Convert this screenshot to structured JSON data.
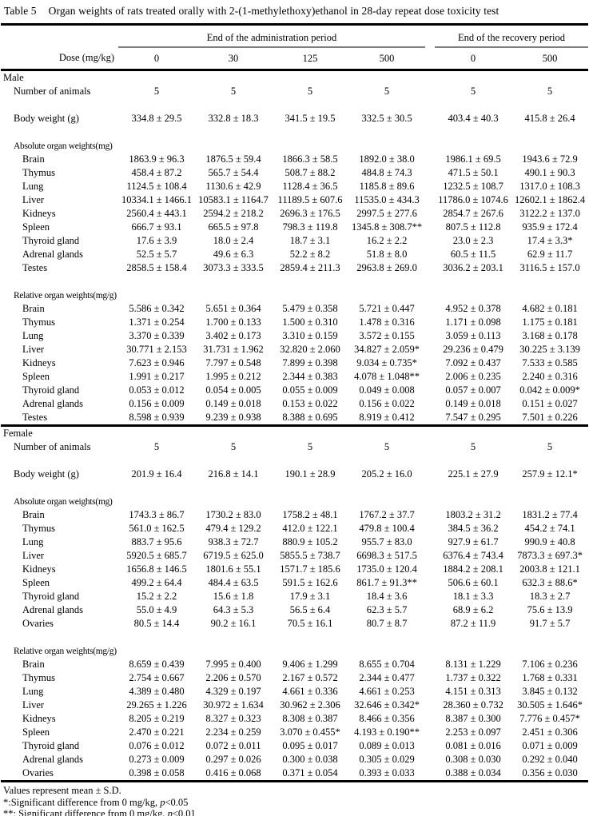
{
  "title": {
    "number": "Table 5",
    "caption": "Organ weights of rats treated orally with 2-(1-methylethoxy)ethanol in 28-day repeat dose toxicity test"
  },
  "header": {
    "admin_period": "End of the administration period",
    "recovery_period": "End of the recovery period",
    "dose_label": "Dose (mg/kg)",
    "doses": [
      "0",
      "30",
      "125",
      "500",
      "0",
      "500"
    ]
  },
  "sections": [
    {
      "label": "Male",
      "rows": [
        {
          "t": "item",
          "label": "Number of animals",
          "v": [
            "5",
            "5",
            "5",
            "5",
            "5",
            "5"
          ]
        },
        {
          "t": "gap"
        },
        {
          "t": "item",
          "label": "Body weight (g)",
          "v": [
            "334.8 ± 29.5",
            "332.8 ± 18.3",
            "341.5 ± 19.5",
            "332.5 ± 30.5",
            "403.4 ± 40.3",
            "415.8 ± 26.4"
          ]
        },
        {
          "t": "gap"
        },
        {
          "t": "sub",
          "label": "Absolute organ weights(mg)"
        },
        {
          "t": "organ",
          "label": "Brain",
          "v": [
            "1863.9 ± 96.3",
            "1876.5 ± 59.4",
            "1866.3 ± 58.5",
            "1892.0 ± 38.0",
            "1986.1 ± 69.5",
            "1943.6 ± 72.9"
          ]
        },
        {
          "t": "organ",
          "label": "Thymus",
          "v": [
            "458.4 ± 87.2",
            "565.7 ± 54.4",
            "508.7 ± 88.2",
            "484.8 ± 74.3",
            "471.5 ± 50.1",
            "490.1 ± 90.3"
          ]
        },
        {
          "t": "organ",
          "label": "Lung",
          "v": [
            "1124.5 ± 108.4",
            "1130.6 ± 42.9",
            "1128.4 ± 36.5",
            "1185.8 ± 89.6",
            "1232.5 ± 108.7",
            "1317.0 ± 108.3"
          ]
        },
        {
          "t": "organ",
          "label": "Liver",
          "v": [
            "10334.1 ± 1466.1",
            "10583.1 ± 1164.7",
            "11189.5 ± 607.6",
            "11535.0 ± 434.3",
            "11786.0 ± 1074.6",
            "12602.1 ± 1862.4"
          ]
        },
        {
          "t": "organ",
          "label": "Kidneys",
          "v": [
            "2560.4 ± 443.1",
            "2594.2 ± 218.2",
            "2696.3 ± 176.5",
            "2997.5 ± 277.6",
            "2854.7 ± 267.6",
            "3122.2 ± 137.0"
          ]
        },
        {
          "t": "organ",
          "label": "Spleen",
          "v": [
            "666.7 ± 93.1",
            "665.5 ± 97.8",
            "798.3 ± 119.8",
            "1345.8 ± 308.7**",
            "807.5 ± 112.8",
            "935.9 ± 172.4"
          ]
        },
        {
          "t": "organ",
          "label": "Thyroid gland",
          "v": [
            "17.6 ± 3.9",
            "18.0 ± 2.4",
            "18.7 ± 3.1",
            "16.2 ± 2.2",
            "23.0 ± 2.3",
            "17.4 ± 3.3*"
          ]
        },
        {
          "t": "organ",
          "label": "Adrenal glands",
          "v": [
            "52.5 ± 5.7",
            "49.6 ± 6.3",
            "52.2 ± 8.2",
            "51.8 ± 8.0",
            "60.5 ± 11.5",
            "62.9 ± 11.7"
          ]
        },
        {
          "t": "organ",
          "label": "Testes",
          "v": [
            "2858.5 ± 158.4",
            "3073.3 ± 333.5",
            "2859.4 ± 211.3",
            "2963.8 ± 269.0",
            "3036.2 ± 203.1",
            "3116.5 ± 157.0"
          ]
        },
        {
          "t": "gap"
        },
        {
          "t": "sub",
          "label": "Relative organ weights(mg/g)"
        },
        {
          "t": "organ",
          "label": "Brain",
          "v": [
            "5.586 ± 0.342",
            "5.651 ± 0.364",
            "5.479 ± 0.358",
            "5.721 ± 0.447",
            "4.952 ± 0.378",
            "4.682 ± 0.181"
          ]
        },
        {
          "t": "organ",
          "label": "Thymus",
          "v": [
            "1.371 ± 0.254",
            "1.700 ± 0.133",
            "1.500 ± 0.310",
            "1.478 ± 0.316",
            "1.171 ± 0.098",
            "1.175 ± 0.181"
          ]
        },
        {
          "t": "organ",
          "label": "Lung",
          "v": [
            "3.370 ± 0.339",
            "3.402 ± 0.173",
            "3.310 ± 0.159",
            "3.572 ± 0.155",
            "3.059 ± 0.113",
            "3.168 ± 0.178"
          ]
        },
        {
          "t": "organ",
          "label": "Liver",
          "v": [
            "30.771 ± 2.153",
            "31.731 ± 1.962",
            "32.820 ± 2.060",
            "34.827 ± 2.059*",
            "29.236 ± 0.479",
            "30.225 ± 3.139"
          ]
        },
        {
          "t": "organ",
          "label": "Kidneys",
          "v": [
            "7.623 ± 0.946",
            "7.797 ± 0.548",
            "7.899 ± 0.398",
            "9.034 ± 0.735*",
            "7.092 ± 0.437",
            "7.533 ± 0.585"
          ]
        },
        {
          "t": "organ",
          "label": "Spleen",
          "v": [
            "1.991 ± 0.217",
            "1.995 ± 0.212",
            "2.344 ± 0.383",
            "4.078 ± 1.048**",
            "2.006 ± 0.235",
            "2.240 ± 0.316"
          ]
        },
        {
          "t": "organ",
          "label": "Thyroid gland",
          "v": [
            "0.053 ± 0.012",
            "0.054 ± 0.005",
            "0.055 ± 0.009",
            "0.049 ± 0.008",
            "0.057 ± 0.007",
            "0.042 ± 0.009*"
          ]
        },
        {
          "t": "organ",
          "label": "Adrenal glands",
          "v": [
            "0.156 ± 0.009",
            "0.149 ± 0.018",
            "0.153 ± 0.022",
            "0.156 ± 0.022",
            "0.149 ± 0.018",
            "0.151 ± 0.027"
          ]
        },
        {
          "t": "organ",
          "label": "Testes",
          "v": [
            "8.598 ± 0.939",
            "9.239 ± 0.938",
            "8.388 ± 0.695",
            "8.919 ± 0.412",
            "7.547 ± 0.295",
            "7.501 ± 0.226"
          ]
        }
      ]
    },
    {
      "label": "Female",
      "rows": [
        {
          "t": "item",
          "label": "Number of animals",
          "v": [
            "5",
            "5",
            "5",
            "5",
            "5",
            "5"
          ]
        },
        {
          "t": "gap"
        },
        {
          "t": "item",
          "label": "Body weight (g)",
          "v": [
            "201.9 ± 16.4",
            "216.8 ± 14.1",
            "190.1 ± 28.9",
            "205.2 ± 16.0",
            "225.1 ± 27.9",
            "257.9 ± 12.1*"
          ]
        },
        {
          "t": "gap"
        },
        {
          "t": "sub",
          "label": "Absolute organ weights(mg)"
        },
        {
          "t": "organ",
          "label": "Brain",
          "v": [
            "1743.3 ± 86.7",
            "1730.2 ± 83.0",
            "1758.2 ± 48.1",
            "1767.2 ± 37.7",
            "1803.2 ± 31.2",
            "1831.2 ± 77.4"
          ]
        },
        {
          "t": "organ",
          "label": "Thymus",
          "v": [
            "561.0 ± 162.5",
            "479.4 ± 129.2",
            "412.0 ± 122.1",
            "479.8 ± 100.4",
            "384.5 ± 36.2",
            "454.2 ± 74.1"
          ]
        },
        {
          "t": "organ",
          "label": "Lung",
          "v": [
            "883.7 ± 95.6",
            "938.3 ± 72.7",
            "880.9 ± 105.2",
            "955.7 ± 83.0",
            "927.9 ± 61.7",
            "990.9 ± 40.8"
          ]
        },
        {
          "t": "organ",
          "label": "Liver",
          "v": [
            "5920.5 ± 685.7",
            "6719.5 ± 625.0",
            "5855.5 ± 738.7",
            "6698.3 ± 517.5",
            "6376.4 ± 743.4",
            "7873.3 ± 697.3*"
          ]
        },
        {
          "t": "organ",
          "label": "Kidneys",
          "v": [
            "1656.8 ± 146.5",
            "1801.6 ± 55.1",
            "1571.7 ± 185.6",
            "1735.0 ± 120.4",
            "1884.2 ± 208.1",
            "2003.8 ± 121.1"
          ]
        },
        {
          "t": "organ",
          "label": "Spleen",
          "v": [
            "499.2 ± 64.4",
            "484.4 ± 63.5",
            "591.5 ± 162.6",
            "861.7 ± 91.3**",
            "506.6 ± 60.1",
            "632.3 ± 88.6*"
          ]
        },
        {
          "t": "organ",
          "label": "Thyroid gland",
          "v": [
            "15.2 ± 2.2",
            "15.6 ± 1.8",
            "17.9 ± 3.1",
            "18.4 ± 3.6",
            "18.1 ± 3.3",
            "18.3 ± 2.7"
          ]
        },
        {
          "t": "organ",
          "label": "Adrenal glands",
          "v": [
            "55.0 ± 4.9",
            "64.3 ± 5.3",
            "56.5 ± 6.4",
            "62.3 ± 5.7",
            "68.9 ± 6.2",
            "75.6 ± 13.9"
          ]
        },
        {
          "t": "organ",
          "label": "Ovaries",
          "v": [
            "80.5 ± 14.4",
            "90.2 ± 16.1",
            "70.5 ± 16.1",
            "80.7 ± 8.7",
            "87.2 ± 11.9",
            "91.7 ± 5.7"
          ]
        },
        {
          "t": "gap"
        },
        {
          "t": "sub",
          "label": "Relative organ weights(mg/g)"
        },
        {
          "t": "organ",
          "label": "Brain",
          "v": [
            "8.659 ± 0.439",
            "7.995 ± 0.400",
            "9.406 ± 1.299",
            "8.655 ± 0.704",
            "8.131 ± 1.229",
            "7.106 ± 0.236"
          ]
        },
        {
          "t": "organ",
          "label": "Thymus",
          "v": [
            "2.754 ± 0.667",
            "2.206 ± 0.570",
            "2.167 ± 0.572",
            "2.344 ± 0.477",
            "1.737 ± 0.322",
            "1.768 ± 0.331"
          ]
        },
        {
          "t": "organ",
          "label": "Lung",
          "v": [
            "4.389 ± 0.480",
            "4.329 ± 0.197",
            "4.661 ± 0.336",
            "4.661 ± 0.253",
            "4.151 ± 0.313",
            "3.845 ± 0.132"
          ]
        },
        {
          "t": "organ",
          "label": "Liver",
          "v": [
            "29.265 ± 1.226",
            "30.972 ± 1.634",
            "30.962 ± 2.306",
            "32.646 ± 0.342*",
            "28.360 ± 0.732",
            "30.505 ± 1.646*"
          ]
        },
        {
          "t": "organ",
          "label": "Kidneys",
          "v": [
            "8.205 ± 0.219",
            "8.327 ± 0.323",
            "8.308 ± 0.387",
            "8.466 ± 0.356",
            "8.387 ± 0.300",
            "7.776 ± 0.457*"
          ]
        },
        {
          "t": "organ",
          "label": "Spleen",
          "v": [
            "2.470 ± 0.221",
            "2.234 ± 0.259",
            "3.070 ± 0.455*",
            "4.193 ± 0.190**",
            "2.253 ± 0.097",
            "2.451 ± 0.306"
          ]
        },
        {
          "t": "organ",
          "label": "Thyroid gland",
          "v": [
            "0.076 ± 0.012",
            "0.072 ± 0.011",
            "0.095 ± 0.017",
            "0.089 ± 0.013",
            "0.081 ± 0.016",
            "0.071 ± 0.009"
          ]
        },
        {
          "t": "organ",
          "label": "Adrenal glands",
          "v": [
            "0.273 ± 0.009",
            "0.297 ± 0.026",
            "0.300 ± 0.038",
            "0.305 ± 0.029",
            "0.308 ± 0.030",
            "0.292 ± 0.040"
          ]
        },
        {
          "t": "organ",
          "label": "Ovaries",
          "v": [
            "0.398 ± 0.058",
            "0.416 ± 0.068",
            "0.371 ± 0.054",
            "0.393 ± 0.033",
            "0.388 ± 0.034",
            "0.356 ± 0.030"
          ]
        }
      ]
    }
  ],
  "footnotes": [
    {
      "pre": "Values represent mean ± S.D.",
      "p": "",
      "post": ""
    },
    {
      "pre": "*:Significant difference from 0 mg/kg, ",
      "p": "p",
      "post": "<0.05"
    },
    {
      "pre": "**: Significant difference from 0 mg/kg, ",
      "p": "p",
      "post": "<0.01"
    }
  ]
}
